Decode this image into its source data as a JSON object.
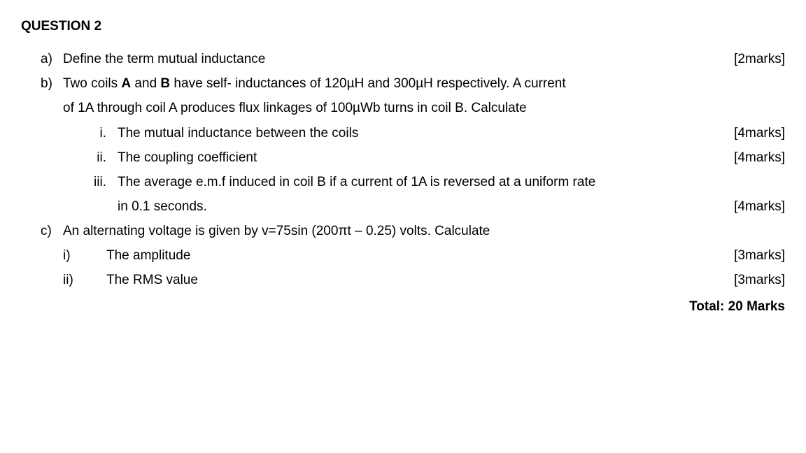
{
  "heading": "QUESTION 2",
  "parts": {
    "a": {
      "letter": "a)",
      "text": "Define the term mutual inductance",
      "marks": "[2marks]"
    },
    "b": {
      "letter": "b)",
      "intro1_prefix": "Two coils ",
      "coilA": "A",
      "intro1_mid": " and ",
      "coilB": "B",
      "intro1_suffix": " have self- inductances of 120µH and 300µH respectively. A current",
      "intro2": "of 1A through coil A produces flux linkages of 100µWb turns in coil B. Calculate",
      "subs": {
        "i": {
          "num": "i.",
          "text": "The mutual inductance between the coils",
          "marks": "[4marks]"
        },
        "ii": {
          "num": "ii.",
          "text": "The coupling coefficient",
          "marks": "[4marks]"
        },
        "iii": {
          "num": "iii.",
          "line1": "The average e.m.f induced in coil B if a current of 1A is reversed at a uniform rate",
          "line2": "in 0.1 seconds.",
          "marks": "[4marks]"
        }
      }
    },
    "c": {
      "letter": "c)",
      "intro": "An alternating voltage is given by v=75sin (200πt – 0.25) volts. Calculate",
      "subs": {
        "i": {
          "num": "i)",
          "text": "The amplitude",
          "marks": "[3marks]"
        },
        "ii": {
          "num": "ii)",
          "text": "The RMS value",
          "marks": "[3marks]"
        }
      }
    }
  },
  "total": "Total: 20 Marks"
}
